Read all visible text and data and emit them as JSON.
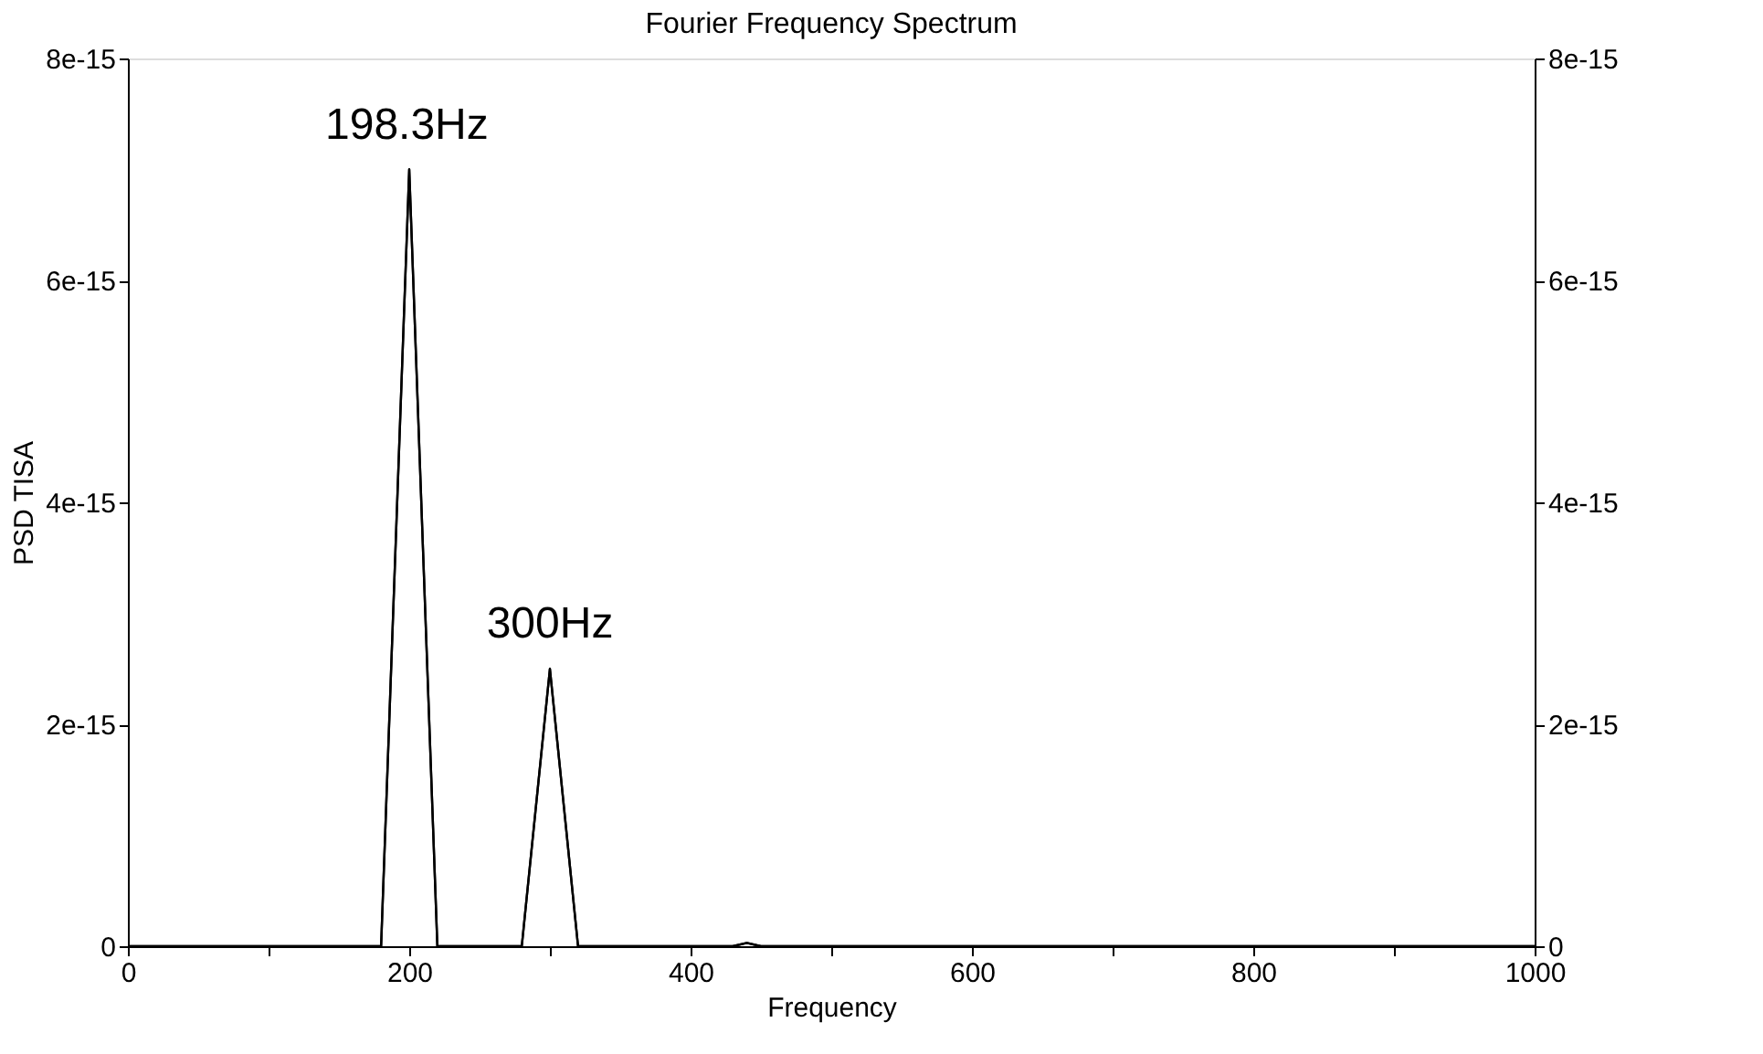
{
  "chart_data": {
    "type": "line",
    "title": "Fourier Frequency Spectrum",
    "xlabel": "Frequency",
    "ylabel": "PSD TISA",
    "x": [
      0,
      180,
      200,
      220,
      280,
      300,
      320,
      430,
      440,
      450,
      1000
    ],
    "series": [
      {
        "color": "#000000",
        "values": [
          0,
          0,
          7e-15,
          0,
          0,
          2.5e-15,
          0,
          0,
          3e-17,
          0,
          0
        ]
      },
      {
        "color": "#000000",
        "axis": "y2",
        "values": [
          0,
          0,
          7e-15,
          0,
          0,
          2.5e-15,
          0,
          0,
          3e-17,
          0,
          0
        ]
      }
    ],
    "xlim": [
      0,
      1000
    ],
    "xticks": [
      0,
      {
        "value": 100,
        "label": null
      },
      200,
      {
        "value": 300,
        "label": null
      },
      400,
      {
        "value": 500,
        "label": null
      },
      600,
      {
        "value": 700,
        "label": null
      },
      800,
      {
        "value": 900,
        "label": null
      },
      1000
    ],
    "ylim": [
      0,
      8e-15
    ],
    "yticks": [
      {
        "value": 0,
        "label": "0"
      },
      {
        "value": 2e-15,
        "label": "2e-15"
      },
      {
        "value": 4e-15,
        "label": "4e-15"
      },
      {
        "value": 6e-15,
        "label": "6e-15"
      },
      {
        "value": 8e-15,
        "label": "8e-15"
      }
    ],
    "y2lim": [
      0,
      8e-15
    ],
    "y2ticks": [
      {
        "value": 0,
        "label": "0"
      },
      {
        "value": 2e-15,
        "label": "2e-15"
      },
      {
        "value": 4e-15,
        "label": "4e-15"
      },
      {
        "value": 6e-15,
        "label": "6e-15"
      },
      {
        "value": 8e-15,
        "label": "8e-15"
      }
    ],
    "annotations": [
      {
        "text": "198.3Hz",
        "x": 198.3,
        "y": 7e-15
      },
      {
        "text": "300Hz",
        "x": 300,
        "y": 2.5e-15
      }
    ],
    "grid": false,
    "legend": false,
    "marker": "none",
    "line_style": "solid"
  }
}
